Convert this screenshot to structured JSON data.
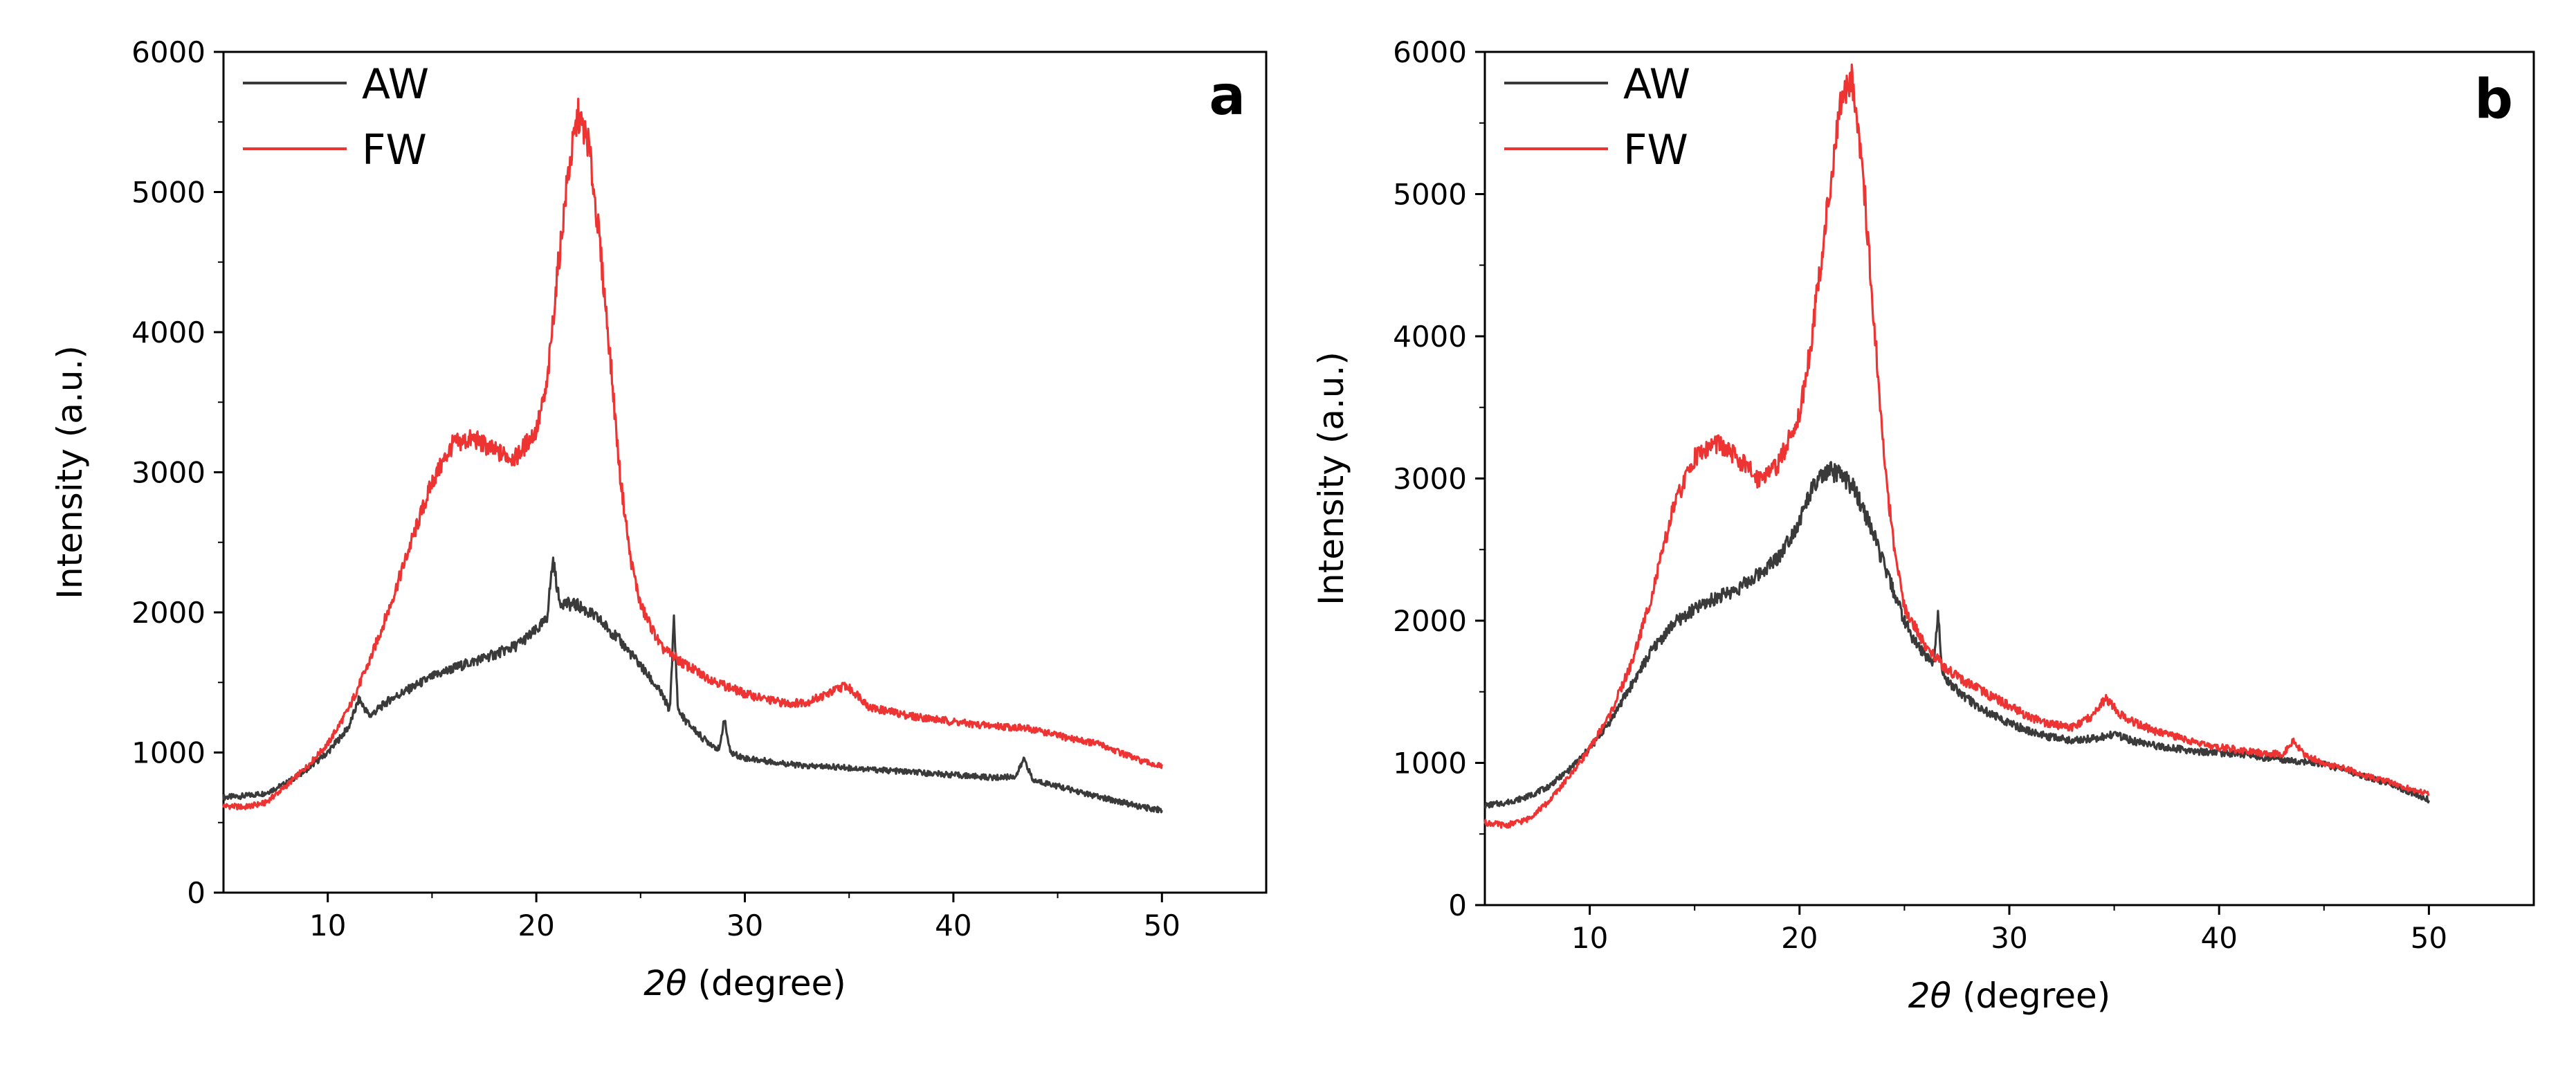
{
  "chart_data": [
    {
      "type": "line",
      "panel_label": "a",
      "title": "",
      "xlabel_symbol": "2θ",
      "xlabel_unit": " (degree)",
      "ylabel": "Intensity (a.u.)",
      "xlim": [
        5,
        55
      ],
      "ylim": [
        0,
        6000
      ],
      "xticks": [
        10,
        20,
        30,
        40,
        50
      ],
      "yticks": [
        0,
        1000,
        2000,
        3000,
        4000,
        5000,
        6000
      ],
      "legend_position": "top-left",
      "series": [
        {
          "name": "AW",
          "color": "#3a3a3a",
          "x": [
            5,
            6,
            7,
            8,
            9,
            10,
            11,
            11.5,
            12,
            13,
            14,
            15,
            16,
            17,
            18,
            19,
            20,
            20.5,
            20.8,
            21.1,
            21.5,
            22,
            23,
            24,
            25,
            26,
            26.4,
            26.6,
            26.8,
            27.2,
            28,
            28.8,
            29,
            29.3,
            30,
            31,
            32,
            33,
            34,
            35,
            36,
            37,
            38,
            39,
            40,
            41,
            42,
            43,
            43.4,
            43.8,
            44.5,
            45,
            46,
            47,
            48,
            49,
            50
          ],
          "y": [
            680,
            690,
            710,
            780,
            880,
            1000,
            1180,
            1380,
            1260,
            1380,
            1460,
            1540,
            1600,
            1650,
            1700,
            1760,
            1870,
            1950,
            2380,
            2080,
            2060,
            2050,
            1950,
            1800,
            1620,
            1420,
            1300,
            1950,
            1300,
            1220,
            1100,
            1020,
            1250,
            1000,
            960,
            940,
            920,
            900,
            900,
            890,
            880,
            870,
            860,
            850,
            840,
            830,
            820,
            830,
            960,
            800,
            780,
            760,
            720,
            680,
            650,
            610,
            590
          ]
        },
        {
          "name": "FW",
          "color": "#ee3333",
          "x": [
            5,
            6,
            7,
            8,
            9,
            10,
            11,
            12,
            13,
            14,
            15,
            16,
            17,
            18,
            19,
            20,
            20.5,
            21,
            21.5,
            22,
            22.5,
            23,
            23.5,
            24,
            24.5,
            25,
            26,
            27,
            28,
            29,
            30,
            31,
            32,
            33,
            34,
            34.8,
            35.5,
            36,
            37,
            38,
            39,
            40,
            41,
            42,
            43,
            44,
            45,
            46,
            47,
            48,
            49,
            50
          ],
          "y": [
            620,
            610,
            640,
            760,
            900,
            1060,
            1310,
            1650,
            2050,
            2500,
            2930,
            3200,
            3240,
            3150,
            3100,
            3300,
            3600,
            4400,
            5100,
            5550,
            5350,
            4700,
            3900,
            3000,
            2400,
            2050,
            1750,
            1640,
            1550,
            1480,
            1420,
            1380,
            1350,
            1360,
            1420,
            1480,
            1400,
            1320,
            1290,
            1260,
            1240,
            1220,
            1200,
            1190,
            1180,
            1160,
            1120,
            1090,
            1060,
            1000,
            940,
            900
          ]
        }
      ]
    },
    {
      "type": "line",
      "panel_label": "b",
      "title": "",
      "xlabel_symbol": "2θ",
      "xlabel_unit": " (degree)",
      "ylabel": "Intensity (a.u.)",
      "xlim": [
        5,
        55
      ],
      "ylim": [
        0,
        6000
      ],
      "xticks": [
        10,
        20,
        30,
        40,
        50
      ],
      "yticks": [
        0,
        1000,
        2000,
        3000,
        4000,
        5000,
        6000
      ],
      "legend_position": "top-left",
      "series": [
        {
          "name": "AW",
          "color": "#3a3a3a",
          "x": [
            5,
            6,
            7,
            8,
            9,
            10,
            11,
            12,
            13,
            14,
            15,
            16,
            17,
            18,
            19,
            20,
            20.5,
            21,
            21.5,
            22,
            22.5,
            23,
            23.5,
            24,
            24.5,
            25,
            25.5,
            26,
            26.4,
            26.6,
            26.8,
            27,
            28,
            29,
            30,
            31,
            32,
            33,
            34,
            35,
            36,
            37,
            38,
            39,
            40,
            41,
            42,
            43,
            44,
            45,
            46,
            47,
            48,
            49,
            50
          ],
          "y": [
            700,
            720,
            760,
            830,
            950,
            1100,
            1300,
            1550,
            1800,
            1980,
            2080,
            2160,
            2220,
            2320,
            2450,
            2700,
            2900,
            3000,
            3050,
            3020,
            2950,
            2800,
            2620,
            2400,
            2200,
            2000,
            1850,
            1760,
            1700,
            2080,
            1650,
            1580,
            1450,
            1350,
            1280,
            1220,
            1180,
            1160,
            1170,
            1200,
            1150,
            1120,
            1100,
            1080,
            1070,
            1060,
            1040,
            1020,
            1010,
            990,
            950,
            900,
            860,
            800,
            740
          ]
        },
        {
          "name": "FW",
          "color": "#ee3333",
          "x": [
            5,
            6,
            7,
            8,
            9,
            10,
            11,
            12,
            13,
            14,
            15,
            16,
            17,
            18,
            19,
            20,
            20.5,
            21,
            21.5,
            22,
            22.5,
            23,
            23.5,
            24,
            24.5,
            25,
            26,
            27,
            28,
            29,
            30,
            31,
            32,
            33,
            34,
            34.6,
            35.2,
            36,
            37,
            38,
            39,
            40,
            41,
            42,
            43,
            43.6,
            44,
            45,
            46,
            47,
            48,
            49,
            50
          ],
          "y": [
            580,
            560,
            600,
            720,
            900,
            1100,
            1350,
            1700,
            2200,
            2800,
            3150,
            3250,
            3150,
            3000,
            3100,
            3450,
            3900,
            4500,
            5100,
            5650,
            5850,
            5200,
            4200,
            3200,
            2500,
            2100,
            1820,
            1660,
            1560,
            1480,
            1400,
            1320,
            1270,
            1250,
            1330,
            1460,
            1350,
            1280,
            1220,
            1180,
            1140,
            1110,
            1090,
            1070,
            1060,
            1160,
            1060,
            1000,
            960,
            910,
            870,
            820,
            780
          ]
        }
      ]
    }
  ]
}
